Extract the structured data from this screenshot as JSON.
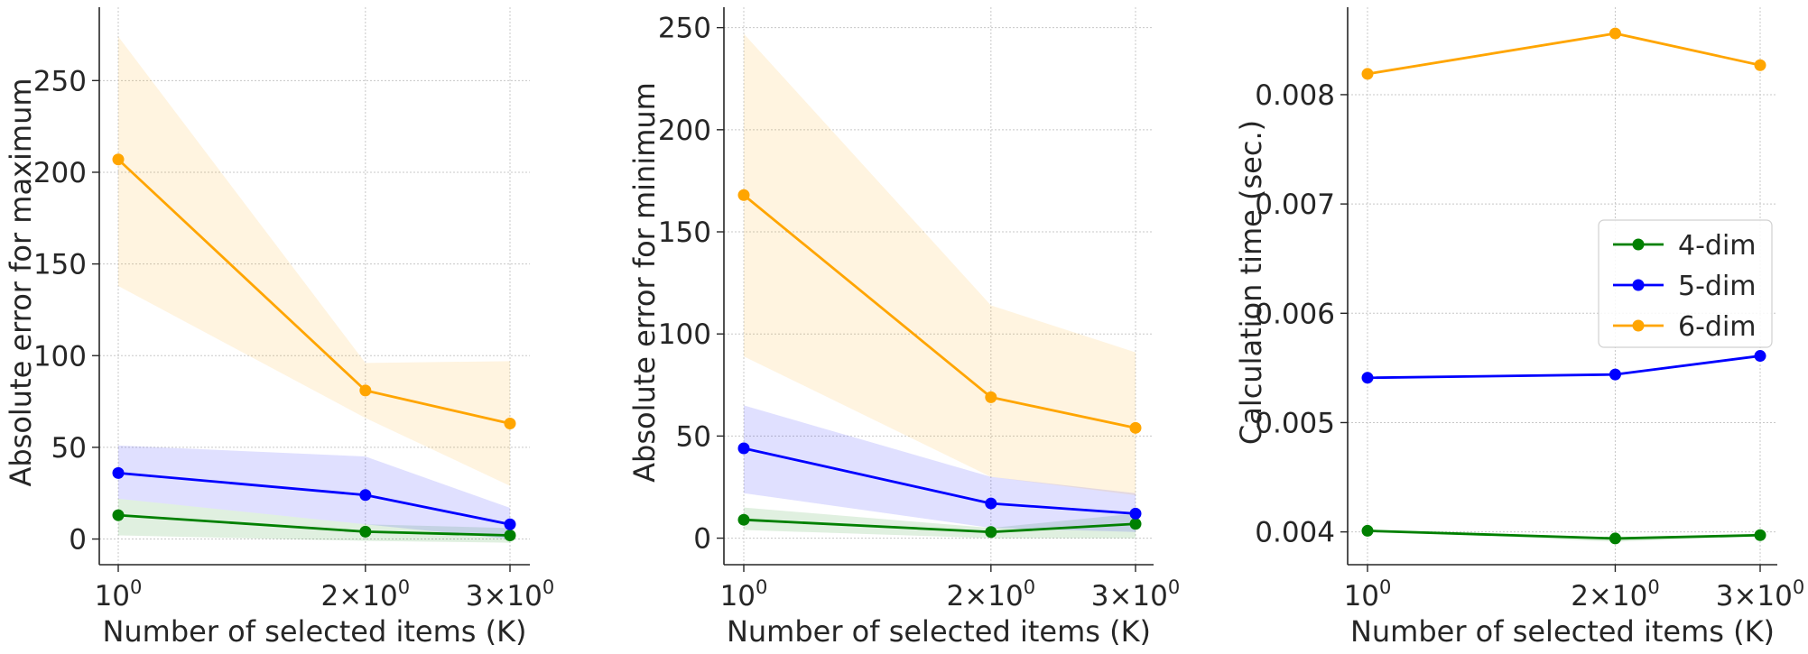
{
  "colors": {
    "4-dim": "#008000",
    "5-dim": "#0000ff",
    "6-dim": "#ffa500"
  },
  "chart_data": [
    {
      "type": "line",
      "xscale": "log",
      "x": [
        1,
        2,
        3
      ],
      "xticks": [
        {
          "value": 1,
          "base": "10",
          "exp": "0"
        },
        {
          "value": 2,
          "base": "2×10",
          "exp": "0"
        },
        {
          "value": 3,
          "base": "3×10",
          "exp": "0"
        }
      ],
      "xlabel": "Number of selected items (K)",
      "ylabel": "Absolute error for maximum",
      "ylim": [
        -14,
        290
      ],
      "yticks": [
        0,
        50,
        100,
        150,
        200,
        250
      ],
      "ytick_labels": [
        "0",
        "50",
        "100",
        "150",
        "200",
        "250"
      ],
      "grid": true,
      "legend": "none",
      "series": [
        {
          "name": "4-dim",
          "values": [
            13,
            4,
            2
          ],
          "band_low": [
            2,
            -1,
            -2
          ],
          "band_high": [
            22,
            8,
            6
          ]
        },
        {
          "name": "5-dim",
          "values": [
            36,
            24,
            8
          ],
          "band_low": [
            22,
            8,
            0
          ],
          "band_high": [
            51,
            45,
            17
          ]
        },
        {
          "name": "6-dim",
          "values": [
            207,
            81,
            63
          ],
          "band_low": [
            138,
            66,
            29
          ],
          "band_high": [
            274,
            96,
            97
          ]
        }
      ]
    },
    {
      "type": "line",
      "xscale": "log",
      "x": [
        1,
        2,
        3
      ],
      "xticks": [
        {
          "value": 1,
          "base": "10",
          "exp": "0"
        },
        {
          "value": 2,
          "base": "2×10",
          "exp": "0"
        },
        {
          "value": 3,
          "base": "3×10",
          "exp": "0"
        }
      ],
      "xlabel": "Number of selected items (K)",
      "ylabel": "Absolute error for minimum",
      "ylim": [
        -13,
        260
      ],
      "yticks": [
        0,
        50,
        100,
        150,
        200,
        250
      ],
      "ytick_labels": [
        "0",
        "50",
        "100",
        "150",
        "200",
        "250"
      ],
      "grid": true,
      "legend": "none",
      "series": [
        {
          "name": "4-dim",
          "values": [
            9,
            3,
            7
          ],
          "band_low": [
            4,
            0,
            0
          ],
          "band_high": [
            15,
            5,
            12
          ]
        },
        {
          "name": "5-dim",
          "values": [
            44,
            17,
            12
          ],
          "band_low": [
            22,
            5,
            3
          ],
          "band_high": [
            65,
            30,
            22
          ]
        },
        {
          "name": "6-dim",
          "values": [
            168,
            69,
            54
          ],
          "band_low": [
            89,
            30,
            21
          ],
          "band_high": [
            247,
            114,
            91
          ]
        }
      ]
    },
    {
      "type": "line",
      "xscale": "log",
      "x": [
        1,
        2,
        3
      ],
      "xticks": [
        {
          "value": 1,
          "base": "10",
          "exp": "0"
        },
        {
          "value": 2,
          "base": "2×10",
          "exp": "0"
        },
        {
          "value": 3,
          "base": "3×10",
          "exp": "0"
        }
      ],
      "xlabel": "Number of selected items (K)",
      "ylabel": "Calculation time (sec.)",
      "ylim": [
        0.0037,
        0.0088
      ],
      "yticks": [
        0.004,
        0.005,
        0.006,
        0.007,
        0.008
      ],
      "ytick_labels": [
        "0.004",
        "0.005",
        "0.006",
        "0.007",
        "0.008"
      ],
      "grid": true,
      "legend": "center-right",
      "series": [
        {
          "name": "4-dim",
          "values": [
            0.00401,
            0.00394,
            0.00397
          ],
          "band_low": [
            0.00401,
            0.00391,
            0.00396
          ],
          "band_high": [
            0.00402,
            0.00395,
            0.00398
          ]
        },
        {
          "name": "5-dim",
          "values": [
            0.00541,
            0.00544,
            0.00561
          ],
          "band_low": [
            0.00541,
            0.00544,
            0.00561
          ],
          "band_high": [
            0.00541,
            0.00544,
            0.00561
          ]
        },
        {
          "name": "6-dim",
          "values": [
            0.00819,
            0.00856,
            0.00827
          ],
          "band_low": [
            0.00819,
            0.00856,
            0.00827
          ],
          "band_high": [
            0.00819,
            0.00856,
            0.00827
          ]
        }
      ]
    }
  ]
}
